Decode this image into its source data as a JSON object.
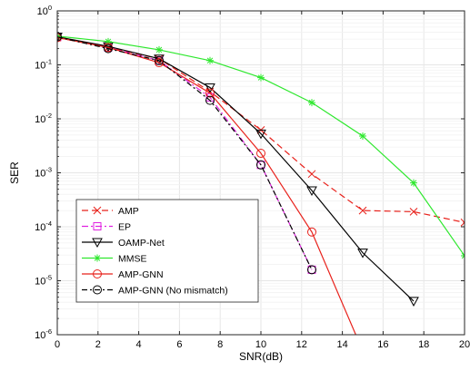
{
  "chart_data": {
    "type": "line",
    "xlabel": "SNR(dB)",
    "ylabel": "SER",
    "xlim": [
      0,
      20
    ],
    "ylim": [
      1e-06,
      1
    ],
    "yscale": "log",
    "grid": true,
    "legend_position": "bottom-left",
    "xticks": [
      0,
      2,
      4,
      6,
      8,
      10,
      12,
      14,
      16,
      18,
      20
    ],
    "xtick_labels": [
      "0",
      "2",
      "4",
      "6",
      "8",
      "10",
      "12",
      "14",
      "16",
      "18",
      "20"
    ],
    "yticks": [
      {
        "value": 1,
        "base": "10",
        "exp": "0"
      },
      {
        "value": 0.1,
        "base": "10",
        "exp": "-1"
      },
      {
        "value": 0.01,
        "base": "10",
        "exp": "-2"
      },
      {
        "value": 0.001,
        "base": "10",
        "exp": "-3"
      },
      {
        "value": 0.0001,
        "base": "10",
        "exp": "-4"
      },
      {
        "value": 1e-05,
        "base": "10",
        "exp": "-5"
      },
      {
        "value": 1e-06,
        "base": "10",
        "exp": "-6"
      }
    ],
    "series": [
      {
        "name": "AMP",
        "color": "#e8201a",
        "dash": "7,4",
        "marker": "x",
        "x": [
          0,
          2.5,
          5,
          7.5,
          10,
          12.5,
          15,
          17.5,
          20
        ],
        "y": [
          0.32,
          0.21,
          0.13,
          0.032,
          0.0062,
          0.00095,
          0.0002,
          0.00019,
          0.00012
        ]
      },
      {
        "name": "EP",
        "color": "#e020e0",
        "dash": "7,3,2,3",
        "marker": "square",
        "x": [
          0,
          2.5,
          5,
          7.5,
          10,
          12.5
        ],
        "y": [
          0.33,
          0.21,
          0.12,
          0.025,
          0.0014,
          1.6e-05
        ]
      },
      {
        "name": "OAMP-Net",
        "color": "#000000",
        "dash": "",
        "marker": "triangle-down",
        "x": [
          0,
          2.5,
          5,
          7.5,
          10,
          12.5,
          15,
          17.5
        ],
        "y": [
          0.33,
          0.22,
          0.13,
          0.038,
          0.0053,
          0.00047,
          3.3e-05,
          4.2e-06
        ]
      },
      {
        "name": "MMSE",
        "color": "#2ee82e",
        "dash": "",
        "marker": "star",
        "x": [
          0,
          2.5,
          5,
          7.5,
          10,
          12.5,
          15,
          17.5,
          20
        ],
        "y": [
          0.34,
          0.27,
          0.19,
          0.12,
          0.058,
          0.02,
          0.0048,
          0.00065,
          2.9e-05
        ]
      },
      {
        "name": "AMP-GNN",
        "color": "#e8201a",
        "dash": "",
        "marker": "circle",
        "x": [
          0,
          2.5,
          5,
          7.5,
          10,
          12.5,
          15
        ],
        "y": [
          0.32,
          0.21,
          0.11,
          0.03,
          0.0023,
          8e-05,
          5e-07
        ],
        "marker_count": 6
      },
      {
        "name": "AMP-GNN (No mismatch)",
        "color": "#000000",
        "dash": "6,3,2,3",
        "marker": "circle",
        "x": [
          0,
          2.5,
          5,
          7.5,
          10,
          12.5
        ],
        "y": [
          0.33,
          0.2,
          0.12,
          0.022,
          0.0014,
          1.6e-05
        ]
      }
    ]
  }
}
